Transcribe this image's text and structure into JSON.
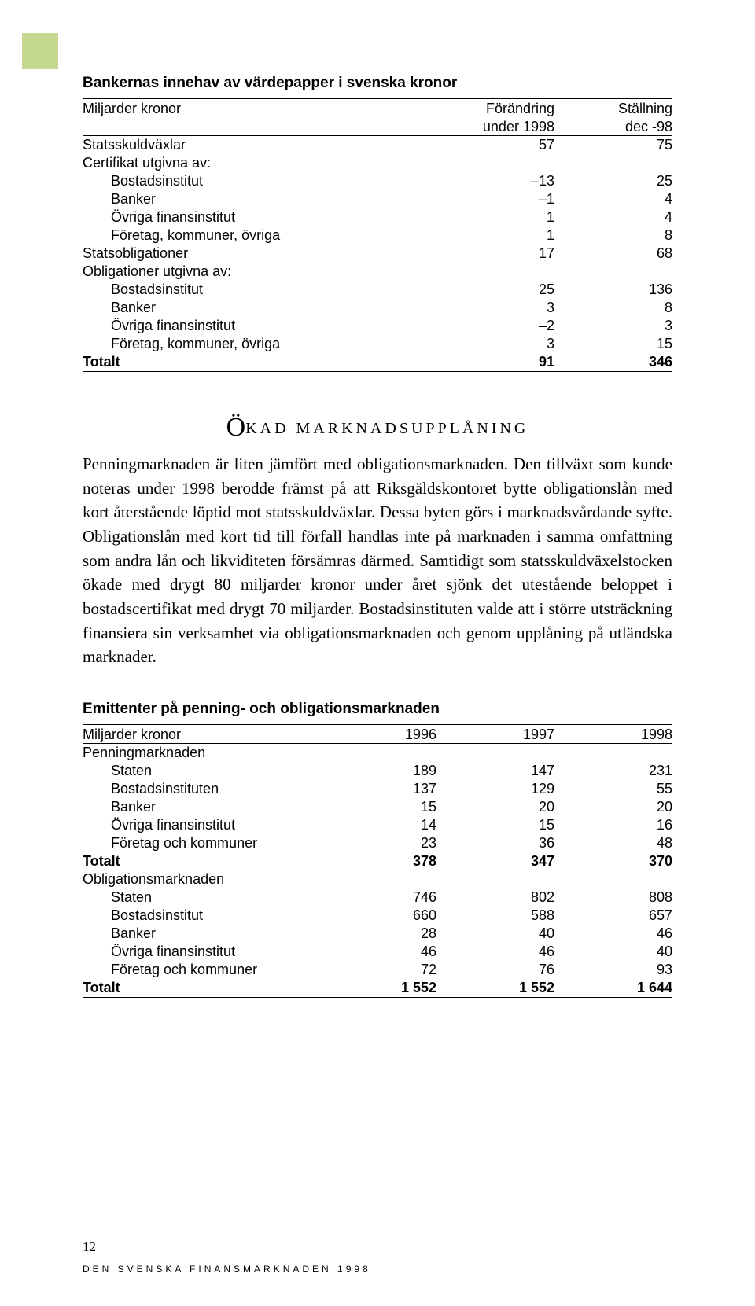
{
  "accent_color": "#c4d88f",
  "table1": {
    "title": "Bankernas innehav av värdepapper i svenska kronor",
    "header": {
      "col0": "Miljarder kronor",
      "col1a": "Förändring",
      "col1b": "under 1998",
      "col2a": "Ställning",
      "col2b": "dec -98"
    },
    "rows": [
      {
        "label": "Statsskuldväxlar",
        "v1": "57",
        "v2": "75",
        "indent": false,
        "bold": false
      },
      {
        "label": "Certifikat utgivna av:",
        "v1": "",
        "v2": "",
        "indent": false,
        "bold": false
      },
      {
        "label": "Bostadsinstitut",
        "v1": "–13",
        "v2": "25",
        "indent": true,
        "bold": false
      },
      {
        "label": "Banker",
        "v1": "–1",
        "v2": "4",
        "indent": true,
        "bold": false
      },
      {
        "label": "Övriga finansinstitut",
        "v1": "1",
        "v2": "4",
        "indent": true,
        "bold": false
      },
      {
        "label": "Företag, kommuner, övriga",
        "v1": "1",
        "v2": "8",
        "indent": true,
        "bold": false
      },
      {
        "label": "Statsobligationer",
        "v1": "17",
        "v2": "68",
        "indent": false,
        "bold": false
      },
      {
        "label": "Obligationer utgivna av:",
        "v1": "",
        "v2": "",
        "indent": false,
        "bold": false
      },
      {
        "label": "Bostadsinstitut",
        "v1": "25",
        "v2": "136",
        "indent": true,
        "bold": false
      },
      {
        "label": "Banker",
        "v1": "3",
        "v2": "8",
        "indent": true,
        "bold": false
      },
      {
        "label": "Övriga finansinstitut",
        "v1": "–2",
        "v2": "3",
        "indent": true,
        "bold": false
      },
      {
        "label": "Företag, kommuner, övriga",
        "v1": "3",
        "v2": "15",
        "indent": true,
        "bold": false
      },
      {
        "label": "Totalt",
        "v1": "91",
        "v2": "346",
        "indent": false,
        "bold": true
      }
    ]
  },
  "section": {
    "initial": "Ö",
    "rest": "kad marknadsupplåning"
  },
  "paragraph": "Penningmarknaden är liten jämfört med obligationsmarknaden. Den tillväxt som kunde noteras under 1998 berodde främst på att Riksgäldskontoret bytte obligationslån med kort återstående löptid mot statsskuldväxlar. Dessa byten görs i marknadsvårdande syfte. Obligationslån med kort tid till förfall handlas inte på marknaden i samma omfattning som andra lån och likviditeten försämras därmed. Samtidigt som statsskuldväxelstocken ökade med drygt 80 miljarder kronor under året sjönk det utestående beloppet i bostadscertifikat med drygt 70 miljarder. Bostadsinstituten valde att i större utsträckning finansiera sin verksamhet via obligationsmarknaden och genom upplåning på utländska marknader.",
  "table2": {
    "title": "Emittenter på penning- och obligationsmarknaden",
    "header": {
      "col0": "Miljarder kronor",
      "col1": "1996",
      "col2": "1997",
      "col3": "1998"
    },
    "rows": [
      {
        "label": "Penningmarknaden",
        "v1": "",
        "v2": "",
        "v3": "",
        "indent": false,
        "bold": false
      },
      {
        "label": "Staten",
        "v1": "189",
        "v2": "147",
        "v3": "231",
        "indent": true,
        "bold": false
      },
      {
        "label": "Bostadsinstituten",
        "v1": "137",
        "v2": "129",
        "v3": "55",
        "indent": true,
        "bold": false
      },
      {
        "label": "Banker",
        "v1": "15",
        "v2": "20",
        "v3": "20",
        "indent": true,
        "bold": false
      },
      {
        "label": "Övriga finansinstitut",
        "v1": "14",
        "v2": "15",
        "v3": "16",
        "indent": true,
        "bold": false
      },
      {
        "label": "Företag och kommuner",
        "v1": "23",
        "v2": "36",
        "v3": "48",
        "indent": true,
        "bold": false
      },
      {
        "label": "Totalt",
        "v1": "378",
        "v2": "347",
        "v3": "370",
        "indent": false,
        "bold": true
      },
      {
        "label": "Obligationsmarknaden",
        "v1": "",
        "v2": "",
        "v3": "",
        "indent": false,
        "bold": false
      },
      {
        "label": "Staten",
        "v1": "746",
        "v2": "802",
        "v3": "808",
        "indent": true,
        "bold": false
      },
      {
        "label": "Bostadsinstitut",
        "v1": "660",
        "v2": "588",
        "v3": "657",
        "indent": true,
        "bold": false
      },
      {
        "label": "Banker",
        "v1": "28",
        "v2": "40",
        "v3": "46",
        "indent": true,
        "bold": false
      },
      {
        "label": "Övriga finansinstitut",
        "v1": "46",
        "v2": "46",
        "v3": "40",
        "indent": true,
        "bold": false
      },
      {
        "label": "Företag och kommuner",
        "v1": "72",
        "v2": "76",
        "v3": "93",
        "indent": true,
        "bold": false
      },
      {
        "label": "Totalt",
        "v1": "1 552",
        "v2": "1 552",
        "v3": "1 644",
        "indent": false,
        "bold": true
      }
    ]
  },
  "footer": {
    "page": "12",
    "text": "DEN SVENSKA FINANSMARKNADEN 1998"
  }
}
